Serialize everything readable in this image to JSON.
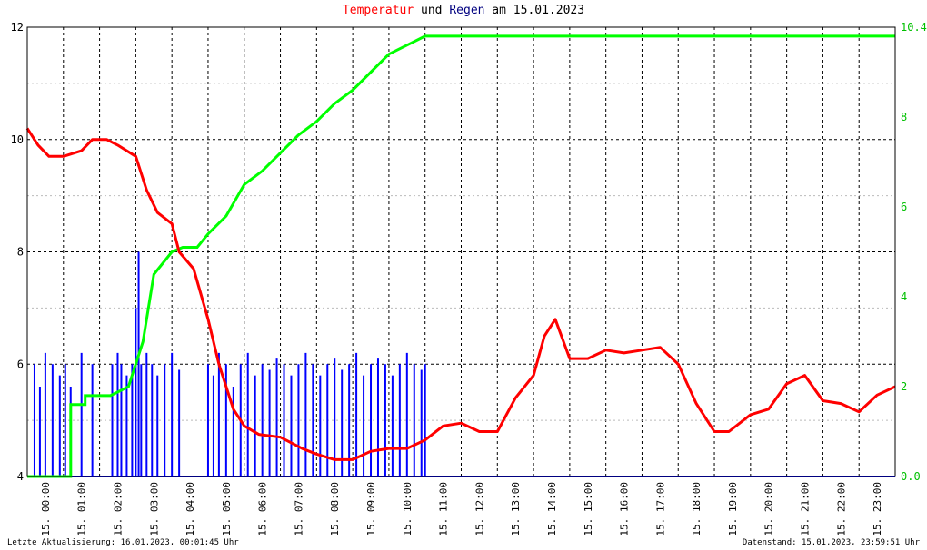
{
  "title": {
    "part1": "Temperatur",
    "part2": " und ",
    "part3": "Regen",
    "part4": " am 15.01.2023",
    "color1": "#ff0000",
    "color3": "#000080"
  },
  "footer": {
    "left": "Letzte Aktualisierung: 16.01.2023, 00:01:45 Uhr",
    "right": "Datenstand: 15.01.2023, 23:59:51 Uhr"
  },
  "colors": {
    "temperature": "#ff0000",
    "rain": "#0000ff",
    "rain_sum": "#00ff00",
    "grid": "#000000",
    "right_axis_text": "#00c000"
  },
  "chart_data": {
    "type": "line",
    "x_range_hours": [
      0,
      24
    ],
    "x_tick_labels": [
      "15. 00:00",
      "15. 01:00",
      "15. 02:00",
      "15. 03:00",
      "15. 04:00",
      "15. 05:00",
      "15. 06:00",
      "15. 07:00",
      "15. 08:00",
      "15. 09:00",
      "15. 10:00",
      "15. 11:00",
      "15. 12:00",
      "15. 13:00",
      "15. 14:00",
      "15. 15:00",
      "15. 16:00",
      "15. 17:00",
      "15. 18:00",
      "15. 19:00",
      "15. 20:00",
      "15. 21:00",
      "15. 22:00",
      "15. 23:00"
    ],
    "left_axis": {
      "ylim": [
        4,
        12
      ],
      "ticks": [
        "4",
        "6",
        "8",
        "10",
        "12"
      ]
    },
    "right_axis": {
      "ylim": [
        0,
        10
      ],
      "ticks": [
        "0.0",
        "2",
        "4",
        "6",
        "8",
        "10.4"
      ]
    },
    "grid": true,
    "series": [
      {
        "key": "temperature",
        "axis": "left",
        "points": [
          [
            0,
            10.2
          ],
          [
            0.3,
            9.9
          ],
          [
            0.6,
            9.7
          ],
          [
            1.0,
            9.7
          ],
          [
            1.5,
            9.8
          ],
          [
            1.8,
            10.0
          ],
          [
            2.2,
            10.0
          ],
          [
            2.5,
            9.9
          ],
          [
            3.0,
            9.7
          ],
          [
            3.3,
            9.1
          ],
          [
            3.6,
            8.7
          ],
          [
            4.0,
            8.5
          ],
          [
            4.2,
            8.0
          ],
          [
            4.6,
            7.7
          ],
          [
            5.0,
            6.8
          ],
          [
            5.3,
            6.0
          ],
          [
            5.7,
            5.2
          ],
          [
            6.0,
            4.9
          ],
          [
            6.4,
            4.75
          ],
          [
            7.0,
            4.7
          ],
          [
            7.6,
            4.5
          ],
          [
            8.0,
            4.4
          ],
          [
            8.5,
            4.3
          ],
          [
            9.0,
            4.3
          ],
          [
            9.5,
            4.45
          ],
          [
            10.0,
            4.5
          ],
          [
            10.5,
            4.5
          ],
          [
            11.0,
            4.65
          ],
          [
            11.5,
            4.9
          ],
          [
            12.0,
            4.95
          ],
          [
            12.5,
            4.8
          ],
          [
            13.0,
            4.8
          ],
          [
            13.5,
            5.4
          ],
          [
            14.0,
            5.8
          ],
          [
            14.3,
            6.5
          ],
          [
            14.6,
            6.8
          ],
          [
            15.0,
            6.1
          ],
          [
            15.5,
            6.1
          ],
          [
            16.0,
            6.25
          ],
          [
            16.5,
            6.2
          ],
          [
            17.0,
            6.25
          ],
          [
            17.5,
            6.3
          ],
          [
            18.0,
            6.0
          ],
          [
            18.5,
            5.3
          ],
          [
            19.0,
            4.8
          ],
          [
            19.4,
            4.8
          ],
          [
            20.0,
            5.1
          ],
          [
            20.5,
            5.2
          ],
          [
            21.0,
            5.65
          ],
          [
            21.5,
            5.8
          ],
          [
            22.0,
            5.35
          ],
          [
            22.5,
            5.3
          ],
          [
            23.0,
            5.15
          ],
          [
            23.5,
            5.45
          ],
          [
            24.0,
            5.6
          ]
        ]
      },
      {
        "key": "rain_sum",
        "axis": "right",
        "points": [
          [
            0,
            0
          ],
          [
            1.2,
            0
          ],
          [
            1.2,
            1.6
          ],
          [
            1.6,
            1.6
          ],
          [
            1.6,
            1.8
          ],
          [
            2.3,
            1.8
          ],
          [
            2.8,
            2.0
          ],
          [
            3.2,
            3.0
          ],
          [
            3.5,
            4.5
          ],
          [
            4.0,
            5.0
          ],
          [
            4.3,
            5.1
          ],
          [
            4.7,
            5.1
          ],
          [
            5.0,
            5.4
          ],
          [
            5.5,
            5.8
          ],
          [
            6.0,
            6.5
          ],
          [
            6.5,
            6.8
          ],
          [
            7.0,
            7.2
          ],
          [
            7.5,
            7.6
          ],
          [
            8.0,
            7.9
          ],
          [
            8.5,
            8.3
          ],
          [
            9.0,
            8.6
          ],
          [
            9.5,
            9.0
          ],
          [
            10.0,
            9.4
          ],
          [
            10.5,
            9.6
          ],
          [
            11.0,
            9.8
          ],
          [
            11.5,
            9.8
          ],
          [
            24.0,
            9.8
          ]
        ]
      },
      {
        "key": "rain",
        "axis": "left",
        "bars": [
          [
            0.2,
            6.0
          ],
          [
            0.35,
            5.6
          ],
          [
            0.5,
            6.2
          ],
          [
            0.7,
            6.0
          ],
          [
            0.9,
            5.8
          ],
          [
            1.05,
            6.0
          ],
          [
            1.2,
            5.6
          ],
          [
            1.5,
            6.2
          ],
          [
            1.8,
            6.0
          ],
          [
            2.35,
            6.0
          ],
          [
            2.5,
            6.2
          ],
          [
            2.6,
            6.0
          ],
          [
            2.75,
            5.8
          ],
          [
            2.9,
            6.0
          ],
          [
            3.0,
            7.0
          ],
          [
            3.08,
            8.0
          ],
          [
            3.15,
            6.0
          ],
          [
            3.3,
            6.2
          ],
          [
            3.45,
            6.0
          ],
          [
            3.6,
            5.8
          ],
          [
            3.8,
            6.0
          ],
          [
            4.0,
            6.2
          ],
          [
            4.2,
            5.9
          ],
          [
            5.0,
            6.0
          ],
          [
            5.15,
            5.8
          ],
          [
            5.3,
            6.2
          ],
          [
            5.5,
            6.0
          ],
          [
            5.7,
            5.6
          ],
          [
            5.9,
            6.0
          ],
          [
            6.1,
            6.2
          ],
          [
            6.3,
            5.8
          ],
          [
            6.5,
            6.0
          ],
          [
            6.7,
            5.9
          ],
          [
            6.9,
            6.1
          ],
          [
            7.1,
            6.0
          ],
          [
            7.3,
            5.8
          ],
          [
            7.5,
            6.0
          ],
          [
            7.7,
            6.2
          ],
          [
            7.9,
            6.0
          ],
          [
            8.1,
            5.8
          ],
          [
            8.3,
            6.0
          ],
          [
            8.5,
            6.1
          ],
          [
            8.7,
            5.9
          ],
          [
            8.9,
            6.0
          ],
          [
            9.1,
            6.2
          ],
          [
            9.3,
            5.8
          ],
          [
            9.5,
            6.0
          ],
          [
            9.7,
            6.1
          ],
          [
            9.9,
            6.0
          ],
          [
            10.1,
            5.8
          ],
          [
            10.3,
            6.0
          ],
          [
            10.5,
            6.2
          ],
          [
            10.7,
            6.0
          ],
          [
            10.9,
            5.9
          ],
          [
            11.0,
            6.0
          ]
        ]
      }
    ]
  }
}
